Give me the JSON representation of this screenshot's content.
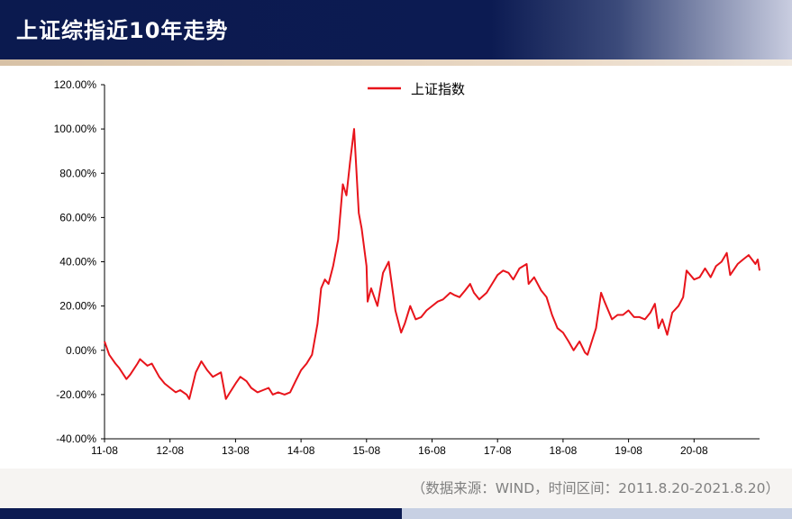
{
  "header": {
    "title": "上证综指近10年走势"
  },
  "source_note": "（数据来源：WIND，时间区间：2011.8.20-2021.8.20）",
  "colors": {
    "header_bg": "#0c1b52",
    "accent_line": "#e8141b",
    "rule": "#d7c1a6"
  },
  "chart_data": {
    "type": "line",
    "title": "",
    "xlabel": "",
    "ylabel": "",
    "ylim": [
      -40,
      120
    ],
    "y_ticks": [
      {
        "v": 120,
        "label": "120.00%"
      },
      {
        "v": 100,
        "label": "100.00%"
      },
      {
        "v": 80,
        "label": "80.00%"
      },
      {
        "v": 60,
        "label": "60.00%"
      },
      {
        "v": 40,
        "label": "40.00%"
      },
      {
        "v": 20,
        "label": "20.00%"
      },
      {
        "v": 0,
        "label": "0.00%"
      },
      {
        "v": -20,
        "label": "-20.00%"
      },
      {
        "v": -40,
        "label": "-40.00%"
      }
    ],
    "x_range": [
      "2011-08-20",
      "2021-08-20"
    ],
    "x_ticks": [
      "11-08",
      "12-08",
      "13-08",
      "14-08",
      "15-08",
      "16-08",
      "17-08",
      "18-08",
      "19-08",
      "20-08"
    ],
    "legend": {
      "position": "top-center"
    },
    "grid": false,
    "series": [
      {
        "name": "上证指数",
        "color": "#e8141b",
        "x": [
          "2011-08-20",
          "2011-09-15",
          "2011-10-20",
          "2011-11-10",
          "2011-12-20",
          "2012-01-10",
          "2012-02-20",
          "2012-03-05",
          "2012-04-15",
          "2012-05-10",
          "2012-06-20",
          "2012-07-20",
          "2012-08-20",
          "2012-09-20",
          "2012-10-15",
          "2012-11-20",
          "2012-12-05",
          "2013-01-10",
          "2013-02-10",
          "2013-03-15",
          "2013-04-15",
          "2013-05-30",
          "2013-06-27",
          "2013-07-20",
          "2013-08-20",
          "2013-09-15",
          "2013-10-20",
          "2013-11-15",
          "2013-12-20",
          "2014-01-20",
          "2014-02-20",
          "2014-03-15",
          "2014-04-15",
          "2014-05-20",
          "2014-06-20",
          "2014-07-20",
          "2014-08-20",
          "2014-09-20",
          "2014-10-20",
          "2014-11-20",
          "2014-12-10",
          "2014-12-31",
          "2015-01-20",
          "2015-02-15",
          "2015-03-15",
          "2015-04-10",
          "2015-04-30",
          "2015-05-20",
          "2015-06-12",
          "2015-07-08",
          "2015-07-24",
          "2015-08-20",
          "2015-08-26",
          "2015-09-15",
          "2015-10-20",
          "2015-11-20",
          "2015-12-22",
          "2016-01-28",
          "2016-02-29",
          "2016-03-20",
          "2016-04-20",
          "2016-05-20",
          "2016-06-20",
          "2016-07-20",
          "2016-08-20",
          "2016-09-20",
          "2016-10-20",
          "2016-11-29",
          "2016-12-20",
          "2017-01-20",
          "2017-02-20",
          "2017-03-20",
          "2017-04-10",
          "2017-05-10",
          "2017-06-20",
          "2017-07-20",
          "2017-08-20",
          "2017-09-20",
          "2017-10-20",
          "2017-11-15",
          "2017-12-20",
          "2018-01-29",
          "2018-02-09",
          "2018-03-12",
          "2018-04-20",
          "2018-05-20",
          "2018-06-20",
          "2018-07-20",
          "2018-08-20",
          "2018-09-20",
          "2018-10-18",
          "2018-11-20",
          "2018-12-20",
          "2019-01-04",
          "2019-02-20",
          "2019-03-20",
          "2019-04-08",
          "2019-05-20",
          "2019-06-20",
          "2019-07-20",
          "2019-08-20",
          "2019-09-20",
          "2019-10-20",
          "2019-11-20",
          "2019-12-20",
          "2020-01-14",
          "2020-02-03",
          "2020-02-25",
          "2020-03-23",
          "2020-04-20",
          "2020-05-25",
          "2020-06-20",
          "2020-07-09",
          "2020-08-20",
          "2020-09-20",
          "2020-10-20",
          "2020-11-20",
          "2020-12-20",
          "2021-01-20",
          "2021-02-18",
          "2021-03-09",
          "2021-04-20",
          "2021-05-20",
          "2021-06-20",
          "2021-07-28",
          "2021-08-10",
          "2021-08-20"
        ],
        "y": [
          4,
          -2,
          -6,
          -8,
          -13,
          -11,
          -6,
          -4,
          -7,
          -6,
          -12,
          -15,
          -17,
          -19,
          -18,
          -20,
          -22,
          -10,
          -5,
          -9,
          -12,
          -10,
          -22,
          -19,
          -15,
          -12,
          -14,
          -17,
          -19,
          -18,
          -17,
          -20,
          -19,
          -20,
          -19,
          -14,
          -9,
          -6,
          -2,
          12,
          28,
          32,
          30,
          38,
          50,
          75,
          70,
          85,
          100,
          62,
          55,
          38,
          22,
          28,
          20,
          35,
          40,
          18,
          8,
          12,
          20,
          14,
          15,
          18,
          20,
          22,
          23,
          26,
          25,
          24,
          27,
          30,
          26,
          23,
          26,
          30,
          34,
          36,
          35,
          32,
          37,
          39,
          30,
          33,
          27,
          24,
          16,
          10,
          8,
          4,
          0,
          4,
          -1,
          -2,
          10,
          26,
          22,
          14,
          16,
          16,
          18,
          15,
          15,
          14,
          17,
          21,
          10,
          14,
          7,
          17,
          20,
          24,
          36,
          32,
          33,
          37,
          33,
          38,
          40,
          44,
          34,
          39,
          41,
          43,
          39,
          41,
          36
        ]
      }
    ]
  }
}
